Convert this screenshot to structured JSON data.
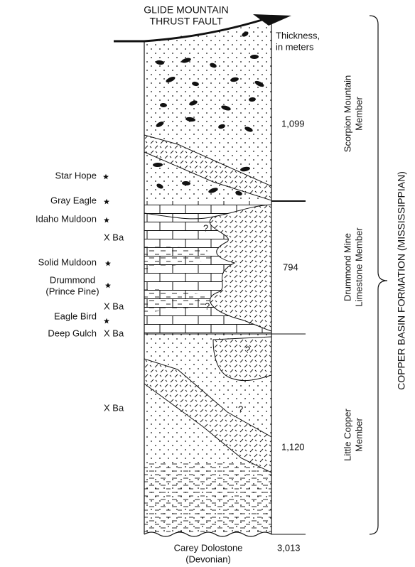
{
  "fault_label": [
    "GLIDE MOUNTAIN",
    "THRUST FAULT"
  ],
  "thickness_header": [
    "Thickness,",
    "in meters"
  ],
  "members": [
    {
      "name": [
        "Scorpion Mountain",
        "Member"
      ],
      "thickness": "1,099"
    },
    {
      "name": [
        "Drummond Mine",
        "Limestone Member"
      ],
      "thickness": "794"
    },
    {
      "name": [
        "Little Copper",
        "Member"
      ],
      "thickness": "1,120"
    }
  ],
  "total_thickness": "3,013",
  "formation": "COPPER BASIN FORMATION (MISSISSIPPIAN)",
  "base_unit": [
    "Carey Dolostone",
    "(Devonian)"
  ],
  "localities": [
    "Star Hope",
    "Gray Eagle",
    "Idaho Muldoon",
    "Solid Muldoon",
    "Drummond",
    "(Prince Pine)",
    "Eagle Bird",
    "Deep Gulch"
  ],
  "barite_occurrences": [
    "X  Ba",
    "X  Ba",
    "X  Ba",
    "X  Ba"
  ],
  "uncertain_marker": "?"
}
